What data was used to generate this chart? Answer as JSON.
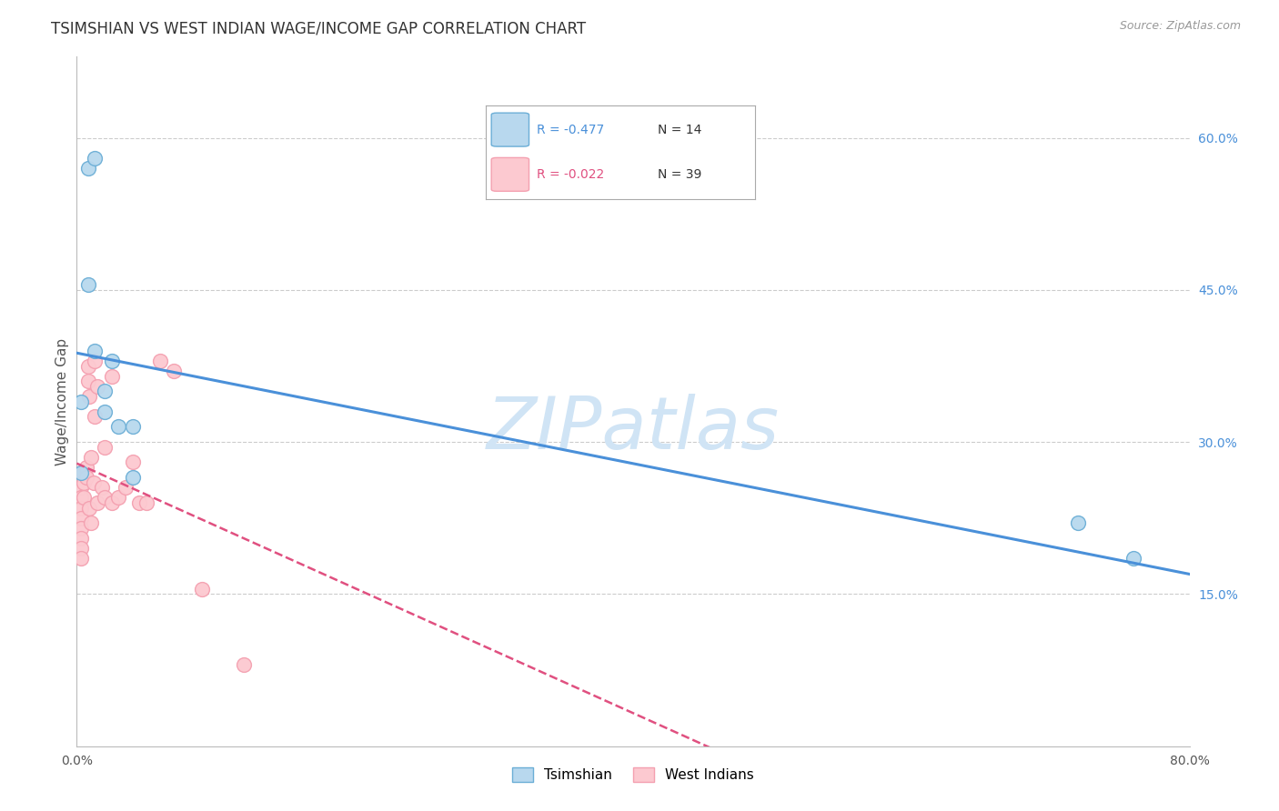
{
  "title": "TSIMSHIAN VS WEST INDIAN WAGE/INCOME GAP CORRELATION CHART",
  "source": "Source: ZipAtlas.com",
  "ylabel": "Wage/Income Gap",
  "y_ticks_right": [
    0.15,
    0.3,
    0.45,
    0.6
  ],
  "y_tick_labels_right": [
    "15.0%",
    "30.0%",
    "45.0%",
    "60.0%"
  ],
  "xlim": [
    0.0,
    0.8
  ],
  "ylim": [
    0.0,
    0.68
  ],
  "legend_r_tsimshian": "-0.477",
  "legend_n_tsimshian": "14",
  "legend_r_west_indian": "-0.022",
  "legend_n_west_indian": "39",
  "tsimshian_edge_color": "#6baed6",
  "west_indian_edge_color": "#f4a0b0",
  "tsimshian_fill_color": "#b8d8ee",
  "west_indian_fill_color": "#fcc9d0",
  "trend_tsimshian_color": "#4a90d9",
  "trend_west_indian_color": "#e05080",
  "watermark_color": "#d0e4f5",
  "background_color": "#ffffff",
  "grid_color": "#cccccc",
  "tsimshian_points_x": [
    0.003,
    0.008,
    0.013,
    0.008,
    0.013,
    0.02,
    0.02,
    0.025,
    0.03,
    0.04,
    0.04,
    0.003,
    0.72,
    0.76
  ],
  "tsimshian_points_y": [
    0.34,
    0.57,
    0.58,
    0.455,
    0.39,
    0.35,
    0.33,
    0.38,
    0.315,
    0.315,
    0.265,
    0.27,
    0.22,
    0.185
  ],
  "west_indian_points_x": [
    0.003,
    0.003,
    0.003,
    0.003,
    0.003,
    0.003,
    0.003,
    0.003,
    0.003,
    0.005,
    0.005,
    0.005,
    0.007,
    0.007,
    0.008,
    0.008,
    0.009,
    0.009,
    0.01,
    0.01,
    0.012,
    0.013,
    0.013,
    0.015,
    0.015,
    0.018,
    0.02,
    0.02,
    0.025,
    0.025,
    0.03,
    0.035,
    0.04,
    0.045,
    0.05,
    0.06,
    0.07,
    0.09,
    0.12
  ],
  "west_indian_points_y": [
    0.27,
    0.255,
    0.245,
    0.235,
    0.225,
    0.215,
    0.205,
    0.195,
    0.185,
    0.27,
    0.26,
    0.245,
    0.275,
    0.265,
    0.375,
    0.36,
    0.345,
    0.235,
    0.285,
    0.22,
    0.26,
    0.38,
    0.325,
    0.355,
    0.24,
    0.255,
    0.295,
    0.245,
    0.365,
    0.24,
    0.245,
    0.255,
    0.28,
    0.24,
    0.24,
    0.38,
    0.37,
    0.155,
    0.08
  ]
}
